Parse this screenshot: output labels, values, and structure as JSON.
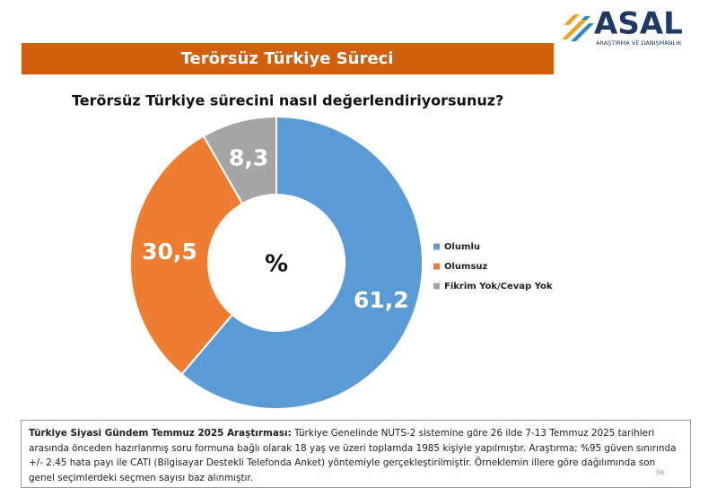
{
  "header": {
    "title": "Terörsüz Türkiye Süreci",
    "logo": "ASAL",
    "logo_subtitle": "ARAŞTIRMA VE DANIŞMANLIK"
  },
  "chart_data": {
    "type": "pie",
    "donut": true,
    "title": "Terörsüz Türkiye sürecini nasıl değerlendiriyorsunuz?",
    "center_label": "%",
    "categories": [
      "Olumlu",
      "Olumsuz",
      "Fikrim Yok/Cevap Yok"
    ],
    "values": [
      61.2,
      30.5,
      8.3
    ],
    "value_labels": [
      "61,2",
      "30,5",
      "8,3"
    ],
    "colors": [
      "#5b9bd5",
      "#ed7d31",
      "#a5a5a5"
    ],
    "legend": "right"
  },
  "footnote": {
    "bold": "Türkiye Siyasi Gündem Temmuz 2025 Araştırması:",
    "text": " Türkiye Genelinde NUTS-2 sistemine göre 26 ilde 7-13 Temmuz 2025 tarihleri arasında önceden hazırlanmış soru formuna bağlı olarak 18 yaş ve üzeri toplamda 1985 kişiyle yapılmıştır. Araştırma; %95 güven sınırında +/- 2.45 hata payı ile CATI (Bilgisayar Destekli Telefonda Anket) yöntemiyle gerçekleştirilmiştir. Örneklemin illere göre dağılımında son genel seçimlerdeki seçmen sayısı baz alınmıştır."
  },
  "page_number": 36
}
